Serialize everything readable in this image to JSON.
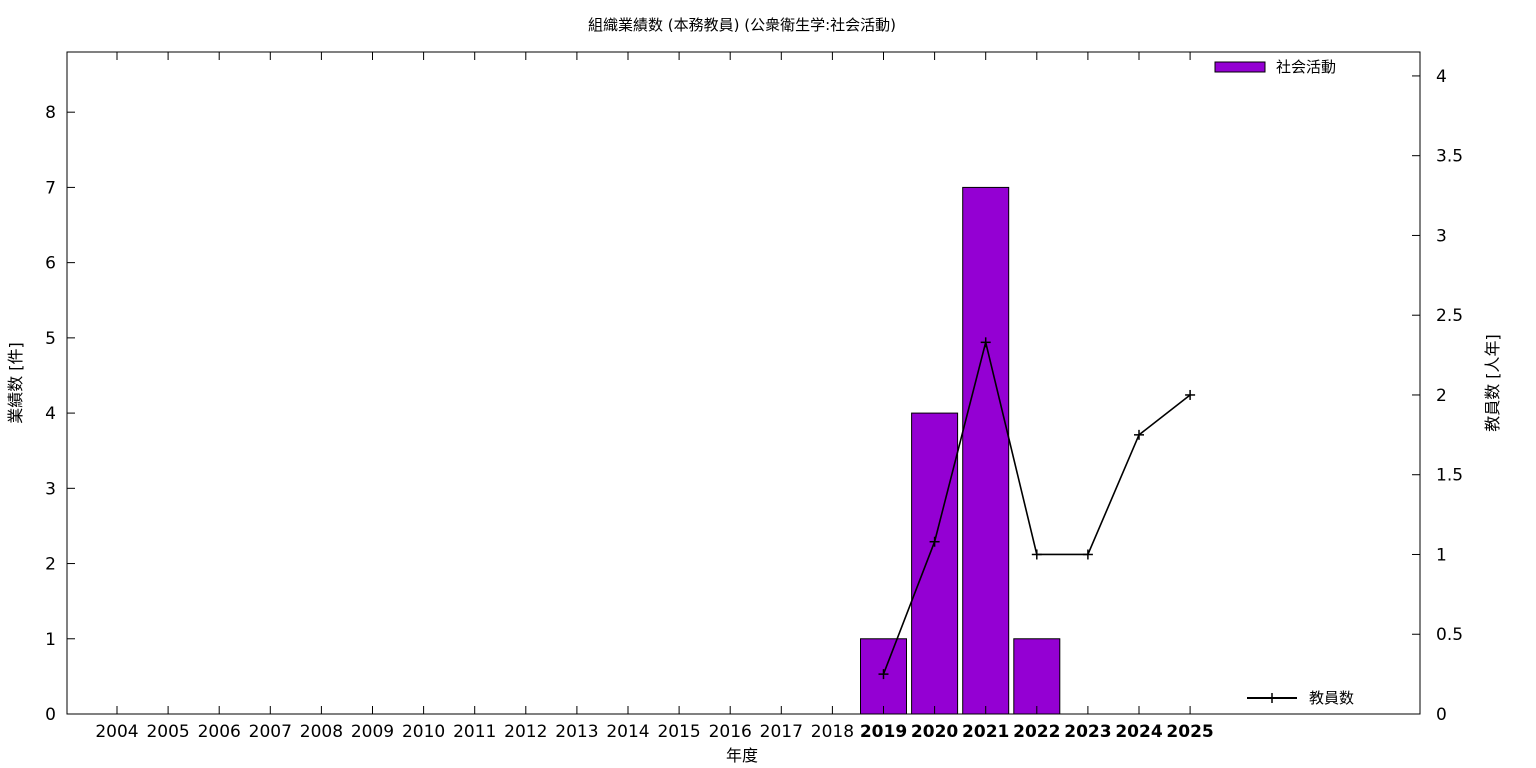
{
  "chart_data": {
    "type": "bar",
    "title": "組織業績数 (本務教員) (公衆衛生学:社会活動)",
    "xlabel": "年度",
    "ylabel": "業績数 [件]",
    "y2label": "教員数 [人年]",
    "categories": [
      "2004",
      "2005",
      "2006",
      "2007",
      "2008",
      "2009",
      "2010",
      "2011",
      "2012",
      "2013",
      "2014",
      "2015",
      "2016",
      "2017",
      "2018",
      "2019",
      "2020",
      "2021",
      "2022",
      "2023",
      "2024",
      "2025"
    ],
    "highlight_categories": [
      "2019",
      "2020",
      "2021",
      "2022",
      "2023",
      "2024",
      "2025"
    ],
    "ylim": [
      0,
      8.8
    ],
    "y_ticks": [
      "0",
      "1",
      "2",
      "3",
      "4",
      "5",
      "6",
      "7",
      "8"
    ],
    "y2lim": [
      0,
      4.15
    ],
    "y2_ticks": [
      "0",
      "0.5",
      "1",
      "1.5",
      "2",
      "2.5",
      "3",
      "3.5",
      "4"
    ],
    "series": [
      {
        "name": "社会活動",
        "kind": "bar",
        "axis": "left",
        "color": "#9400d3",
        "values": [
          0,
          0,
          0,
          0,
          0,
          0,
          0,
          0,
          0,
          0,
          0,
          0,
          0,
          0,
          0,
          1,
          4,
          7,
          1,
          0,
          0,
          0
        ]
      },
      {
        "name": "教員数",
        "kind": "line",
        "axis": "right",
        "color": "#000000",
        "points": [
          {
            "x": "2019",
            "y": 0.25
          },
          {
            "x": "2020",
            "y": 1.08
          },
          {
            "x": "2021",
            "y": 2.33
          },
          {
            "x": "2022",
            "y": 1.0
          },
          {
            "x": "2023",
            "y": 1.0
          },
          {
            "x": "2024",
            "y": 1.75
          },
          {
            "x": "2025",
            "y": 2.0
          }
        ]
      }
    ],
    "legend": [
      {
        "label": "社会活動",
        "placement": "top-right"
      },
      {
        "label": "教員数",
        "placement": "bottom-right"
      }
    ],
    "grid": false
  }
}
